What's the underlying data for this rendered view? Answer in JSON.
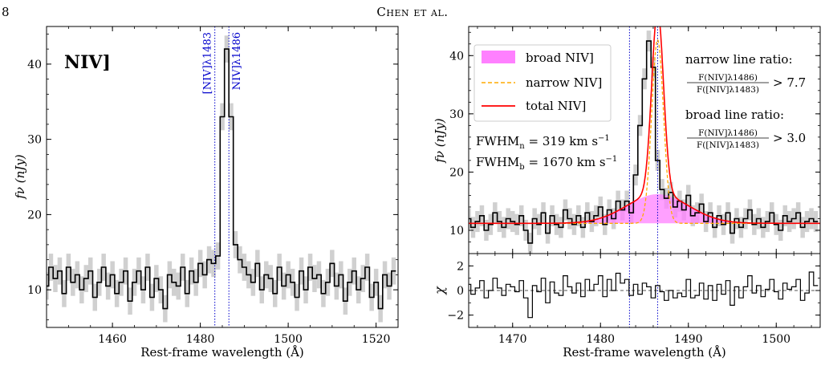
{
  "page": {
    "number": "8",
    "running_head": "Chen et al."
  },
  "chart_data": [
    {
      "type": "line",
      "panel": "left",
      "title": "",
      "inset_label": "NIV]",
      "xlabel": "Rest-frame wavelength (Å)",
      "ylabel": "fν (nJy)",
      "xlim": [
        1445,
        1525
      ],
      "ylim": [
        5,
        45
      ],
      "xticks": [
        1460,
        1480,
        1500,
        1520
      ],
      "yticks": [
        10,
        20,
        30,
        40
      ],
      "line_markers": [
        {
          "label": "[NIV]λ1483",
          "x": 1483.3
        },
        {
          "label": "NIV]λ1486",
          "x": 1486.5
        }
      ],
      "series": [
        {
          "kind": "step_with_error",
          "x": [
            1445.0,
            1446.0,
            1447.0,
            1448.0,
            1449.0,
            1450.0,
            1451.0,
            1452.0,
            1453.0,
            1454.0,
            1455.0,
            1456.0,
            1457.0,
            1458.0,
            1459.0,
            1460.0,
            1461.0,
            1462.0,
            1463.0,
            1464.0,
            1465.0,
            1466.0,
            1467.0,
            1468.0,
            1469.0,
            1470.0,
            1471.0,
            1472.0,
            1473.0,
            1474.0,
            1475.0,
            1476.0,
            1477.0,
            1478.0,
            1479.0,
            1480.0,
            1481.0,
            1482.0,
            1483.0,
            1484.0,
            1485.0,
            1486.0,
            1487.0,
            1488.0,
            1489.0,
            1490.0,
            1491.0,
            1492.0,
            1493.0,
            1494.0,
            1495.0,
            1496.0,
            1497.0,
            1498.0,
            1499.0,
            1500.0,
            1501.0,
            1502.0,
            1503.0,
            1504.0,
            1505.0,
            1506.0,
            1507.0,
            1508.0,
            1509.0,
            1510.0,
            1511.0,
            1512.0,
            1513.0,
            1514.0,
            1515.0,
            1516.0,
            1517.0,
            1518.0,
            1519.0,
            1520.0,
            1521.0,
            1522.0,
            1523.0,
            1524.0
          ],
          "y": [
            10.5,
            13.0,
            11.5,
            12.5,
            9.5,
            13.0,
            11.0,
            12.0,
            10.0,
            11.5,
            12.5,
            9.0,
            11.0,
            13.0,
            10.5,
            12.0,
            9.5,
            11.0,
            12.5,
            8.5,
            11.0,
            12.5,
            10.0,
            13.0,
            9.0,
            11.5,
            10.0,
            7.5,
            12.0,
            11.0,
            10.5,
            13.0,
            9.5,
            12.5,
            11.0,
            13.5,
            12.0,
            14.0,
            13.5,
            14.5,
            33.0,
            42.0,
            33.0,
            16.0,
            14.0,
            13.0,
            12.0,
            11.0,
            13.5,
            10.0,
            12.0,
            11.5,
            9.5,
            13.0,
            10.5,
            12.0,
            11.0,
            9.0,
            12.5,
            10.0,
            13.0,
            11.5,
            12.0,
            9.5,
            11.0,
            13.5,
            10.5,
            12.0,
            8.5,
            11.0,
            12.5,
            10.0,
            11.5,
            13.0,
            9.0,
            11.0,
            7.5,
            12.0,
            10.5,
            12.5
          ],
          "error": 1.8
        }
      ]
    },
    {
      "type": "line",
      "panel": "right-top",
      "title": "",
      "xlabel": "",
      "ylabel": "fν (nJy)",
      "xlim": [
        1465,
        1505
      ],
      "ylim": [
        6,
        45
      ],
      "xticks": [
        1470,
        1480,
        1490,
        1500
      ],
      "yticks": [
        10,
        20,
        30,
        40
      ],
      "line_markers": [
        1483.3,
        1486.5
      ],
      "legend": {
        "placement": "top-left",
        "entries": [
          "broad NIV]",
          "narrow NIV]",
          "total NIV]"
        ]
      },
      "annotations": {
        "fwhm_narrow": {
          "label": "FWHM",
          "subscript": "n",
          "value": "319",
          "unit": "km s",
          "exp": "−1"
        },
        "fwhm_broad": {
          "label": "FWHM",
          "subscript": "b",
          "value": "1670",
          "unit": "km s",
          "exp": "−1"
        },
        "narrow_ratio": {
          "heading": "narrow line ratio:",
          "numerator": "F(NIV]λ1486)",
          "denominator": "F([NIV]λ1483)",
          "relation": "> 7.7"
        },
        "broad_ratio": {
          "heading": "broad line ratio:",
          "numerator": "F(NIV]λ1486)",
          "denominator": "F([NIV]λ1483)",
          "relation": "> 3.0"
        }
      },
      "model": {
        "continuum": 11.2,
        "narrow": {
          "center": 1486.5,
          "amplitude": 31.5,
          "sigma": 0.67
        },
        "broad": {
          "center": 1486.5,
          "amplitude": 5.0,
          "sigma": 3.5
        },
        "colors": {
          "broad_fill": "#ff80ff",
          "narrow": "#ffaa00",
          "total": "#ff0000",
          "data": "#000000",
          "marker": "#0000cc"
        }
      },
      "series": [
        {
          "kind": "step_with_error",
          "x": [
            1465.0,
            1465.5,
            1466.0,
            1466.5,
            1467.0,
            1467.5,
            1468.0,
            1468.5,
            1469.0,
            1469.5,
            1470.0,
            1470.5,
            1471.0,
            1471.5,
            1472.0,
            1472.5,
            1473.0,
            1473.5,
            1474.0,
            1474.5,
            1475.0,
            1475.5,
            1476.0,
            1476.5,
            1477.0,
            1477.5,
            1478.0,
            1478.5,
            1479.0,
            1479.5,
            1480.0,
            1480.5,
            1481.0,
            1481.5,
            1482.0,
            1482.5,
            1483.0,
            1483.5,
            1484.0,
            1484.5,
            1485.0,
            1485.5,
            1486.0,
            1486.5,
            1487.0,
            1487.5,
            1488.0,
            1488.5,
            1489.0,
            1489.5,
            1490.0,
            1490.5,
            1491.0,
            1491.5,
            1492.0,
            1492.5,
            1493.0,
            1493.5,
            1494.0,
            1494.5,
            1495.0,
            1495.5,
            1496.0,
            1496.5,
            1497.0,
            1497.5,
            1498.0,
            1498.5,
            1499.0,
            1499.5,
            1500.0,
            1500.5,
            1501.0,
            1501.5,
            1502.0,
            1502.5,
            1503.0,
            1503.5,
            1504.0,
            1504.5
          ],
          "y": [
            12.0,
            10.5,
            11.5,
            12.5,
            10.0,
            11.0,
            13.0,
            11.5,
            10.5,
            12.0,
            11.5,
            11.0,
            12.5,
            10.0,
            7.8,
            12.0,
            11.0,
            13.0,
            9.5,
            12.5,
            11.0,
            10.5,
            13.5,
            12.0,
            11.0,
            12.5,
            10.5,
            13.0,
            11.5,
            12.5,
            14.0,
            11.0,
            13.5,
            12.0,
            15.0,
            13.5,
            15.0,
            13.0,
            19.5,
            28.0,
            36.0,
            42.5,
            38.0,
            22.0,
            17.0,
            15.5,
            16.5,
            14.0,
            15.0,
            13.5,
            16.0,
            12.5,
            13.0,
            14.5,
            11.5,
            13.0,
            10.5,
            12.5,
            11.0,
            13.0,
            9.5,
            12.0,
            10.5,
            12.0,
            13.5,
            11.0,
            12.0,
            10.5,
            11.5,
            13.0,
            11.0,
            10.0,
            12.5,
            11.5,
            12.0,
            13.0,
            10.5,
            11.5,
            12.0,
            11.5
          ],
          "error": 1.8
        }
      ]
    },
    {
      "type": "line",
      "panel": "right-bottom",
      "title": "",
      "xlabel": "Rest-frame wavelength (Å)",
      "ylabel": "χ",
      "xlim": [
        1465,
        1505
      ],
      "ylim": [
        -3,
        3
      ],
      "xticks": [
        1470,
        1480,
        1490,
        1500
      ],
      "yticks": [
        -2,
        0,
        2
      ],
      "line_markers": [
        1483.3,
        1486.5
      ],
      "reference_line": 0,
      "series": [
        {
          "kind": "step",
          "x": [
            1465.0,
            1465.5,
            1466.0,
            1466.5,
            1467.0,
            1467.5,
            1468.0,
            1468.5,
            1469.0,
            1469.5,
            1470.0,
            1470.5,
            1471.0,
            1471.5,
            1472.0,
            1472.5,
            1473.0,
            1473.5,
            1474.0,
            1474.5,
            1475.0,
            1475.5,
            1476.0,
            1476.5,
            1477.0,
            1477.5,
            1478.0,
            1478.5,
            1479.0,
            1479.5,
            1480.0,
            1480.5,
            1481.0,
            1481.5,
            1482.0,
            1482.5,
            1483.0,
            1483.5,
            1484.0,
            1484.5,
            1485.0,
            1485.5,
            1486.0,
            1486.5,
            1487.0,
            1487.5,
            1488.0,
            1488.5,
            1489.0,
            1489.5,
            1490.0,
            1490.5,
            1491.0,
            1491.5,
            1492.0,
            1492.5,
            1493.0,
            1493.5,
            1494.0,
            1494.5,
            1495.0,
            1495.5,
            1496.0,
            1496.5,
            1497.0,
            1497.5,
            1498.0,
            1498.5,
            1499.0,
            1499.5,
            1500.0,
            1500.5,
            1501.0,
            1501.5,
            1502.0,
            1502.5,
            1503.0,
            1503.5,
            1504.0,
            1504.5
          ],
          "y": [
            0.5,
            -0.3,
            0.2,
            0.8,
            -0.6,
            0.0,
            1.0,
            0.2,
            -0.4,
            0.5,
            0.3,
            -0.1,
            0.8,
            -0.6,
            -2.2,
            0.4,
            -0.1,
            1.0,
            -1.0,
            0.7,
            -0.2,
            -0.4,
            1.2,
            0.3,
            -0.2,
            0.6,
            -0.5,
            0.9,
            0.0,
            0.5,
            1.2,
            -0.5,
            0.9,
            0.0,
            1.4,
            0.6,
            0.9,
            -0.4,
            0.5,
            -0.3,
            0.6,
            0.3,
            -0.6,
            0.4,
            -0.1,
            -0.8,
            0.0,
            -0.6,
            -0.2,
            -0.5,
            0.9,
            -0.6,
            -0.4,
            0.6,
            -0.7,
            0.4,
            -0.8,
            0.5,
            -0.3,
            0.8,
            -1.2,
            0.3,
            -0.6,
            0.3,
            1.2,
            -0.2,
            0.4,
            -0.5,
            0.1,
            0.9,
            -0.1,
            -0.7,
            0.6,
            0.1,
            0.3,
            0.9,
            -0.8,
            -0.2,
            1.5,
            0.4
          ]
        }
      ]
    }
  ]
}
